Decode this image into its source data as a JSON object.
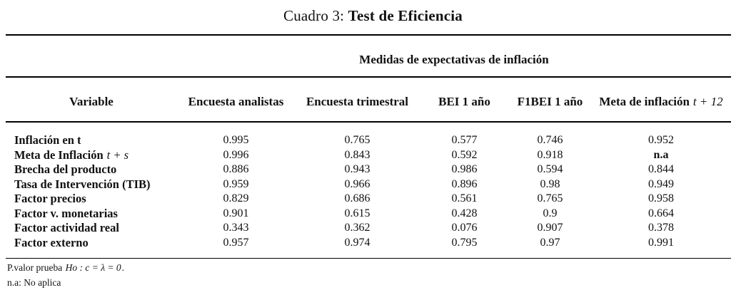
{
  "title": {
    "label": "Cuadro 3:",
    "bold": "Test de Eficiencia"
  },
  "panel_header": "Medidas de expectativas de inflación",
  "table": {
    "columns": [
      {
        "label": "Variable",
        "math": ""
      },
      {
        "label": "Encuesta analistas",
        "math": ""
      },
      {
        "label": "Encuesta trimestral",
        "math": ""
      },
      {
        "label": "BEI 1 año",
        "math": ""
      },
      {
        "label": "F1BEI 1 año",
        "math": ""
      },
      {
        "label": "Meta de inflación",
        "math": "t + 12"
      }
    ],
    "rows": [
      {
        "label": "Inflación en t",
        "label_math": "",
        "values": [
          "0.995",
          "0.765",
          "0.577",
          "0.746",
          "0.952"
        ]
      },
      {
        "label": "Meta de Inflación",
        "label_math": "t + s",
        "values": [
          "0.996",
          "0.843",
          "0.592",
          "0.918",
          "n.a"
        ]
      },
      {
        "label": "Brecha del producto",
        "label_math": "",
        "values": [
          "0.886",
          "0.943",
          "0.986",
          "0.594",
          "0.844"
        ]
      },
      {
        "label": "Tasa de Intervención (TIB)",
        "label_math": "",
        "values": [
          "0.959",
          "0.966",
          "0.896",
          "0.98",
          "0.949"
        ]
      },
      {
        "label": "Factor precios",
        "label_math": "",
        "values": [
          "0.829",
          "0.686",
          "0.561",
          "0.765",
          "0.958"
        ]
      },
      {
        "label": "Factor v. monetarias",
        "label_math": "",
        "values": [
          "0.901",
          "0.615",
          "0.428",
          "0.9",
          "0.664"
        ]
      },
      {
        "label": "Factor actividad real",
        "label_math": "",
        "values": [
          "0.343",
          "0.362",
          "0.076",
          "0.907",
          "0.378"
        ]
      },
      {
        "label": "Factor externo",
        "label_math": "",
        "values": [
          "0.957",
          "0.974",
          "0.795",
          "0.97",
          "0.991"
        ]
      }
    ]
  },
  "footnotes": [
    {
      "prefix": "P.valor prueba ",
      "math": "Ho : c = λ = 0",
      "suffix": "."
    },
    {
      "prefix": "n.a: No aplica",
      "math": "",
      "suffix": ""
    }
  ],
  "colors": {
    "text": "#111111",
    "rule": "#000000",
    "background": "#ffffff"
  }
}
